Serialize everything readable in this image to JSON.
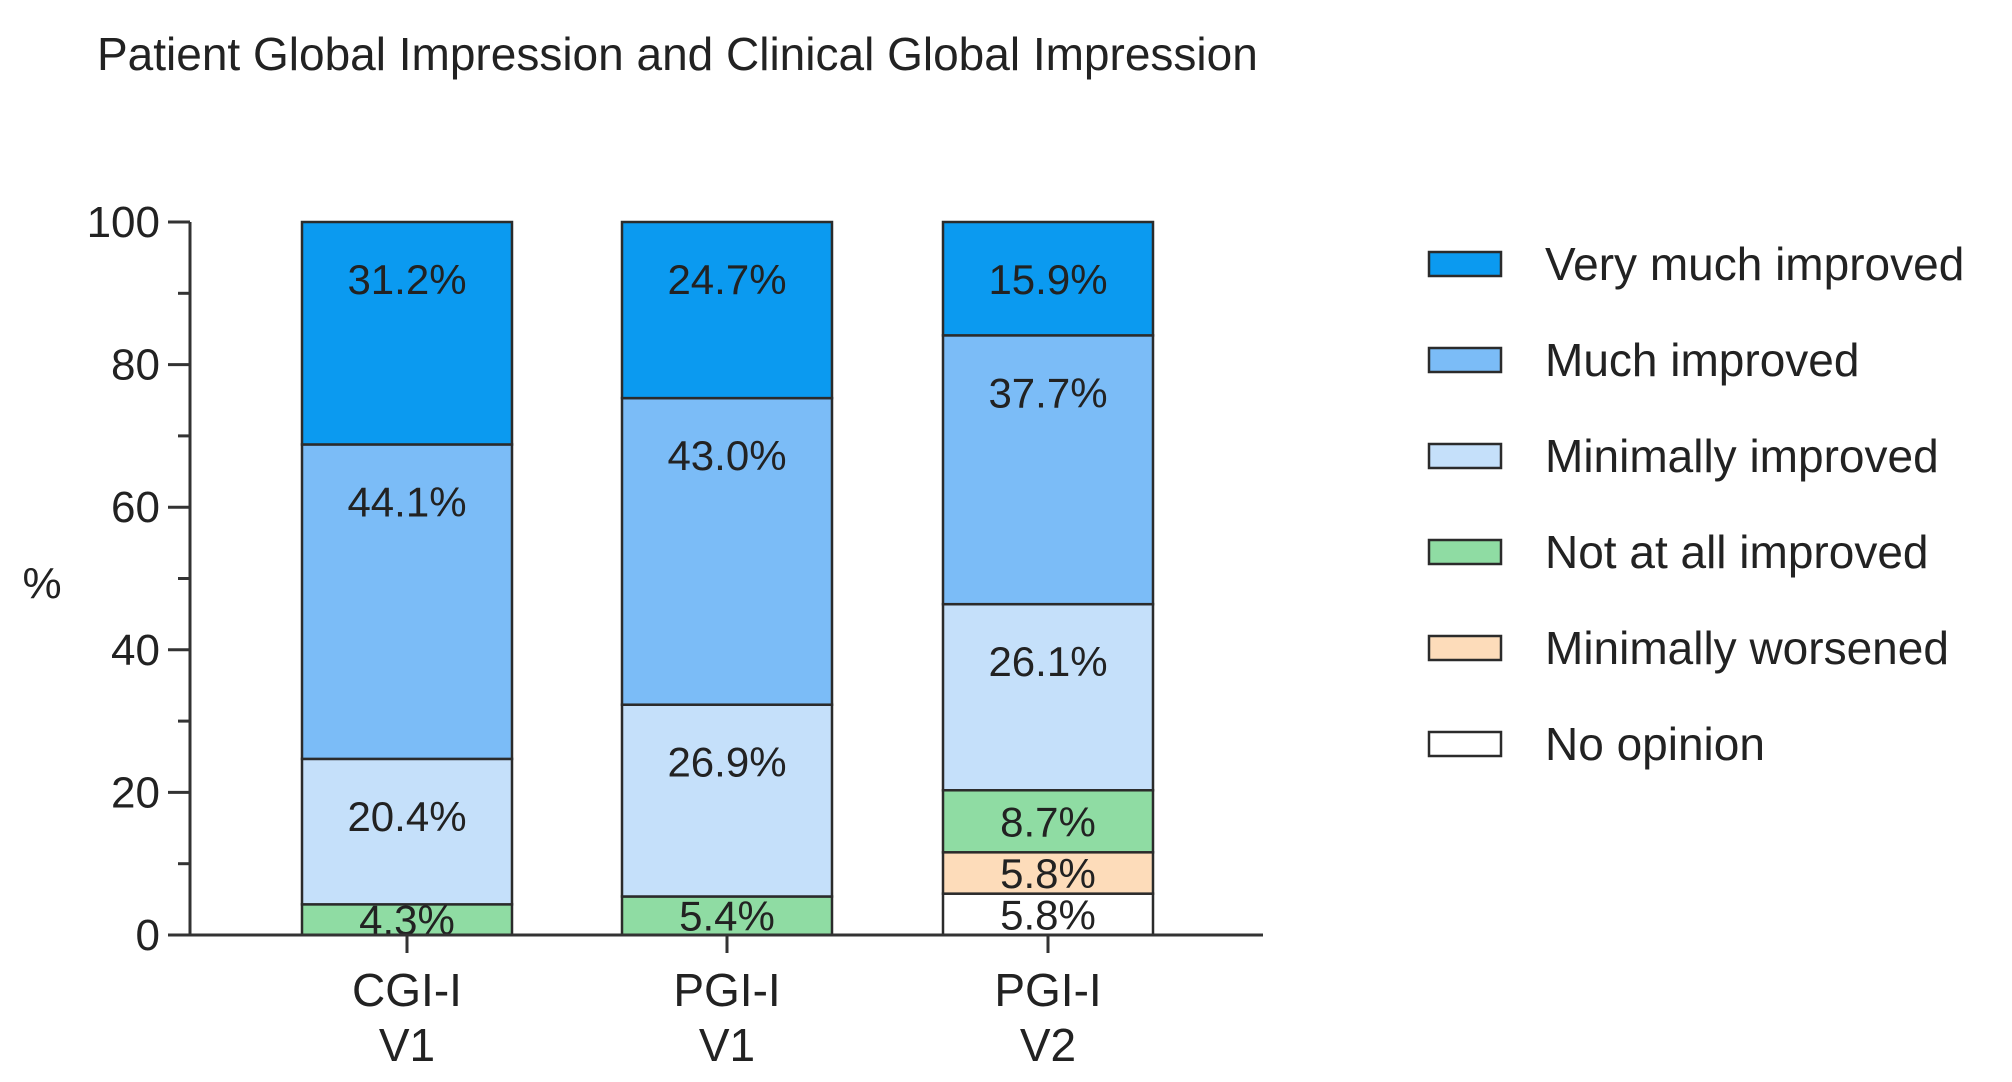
{
  "chart_data": {
    "type": "bar",
    "stacked": true,
    "title": "Patient Global Impression and Clinical Global Impression",
    "xlabel": "",
    "ylabel": "%",
    "ylim": [
      0,
      100
    ],
    "yticks": [
      0,
      20,
      40,
      60,
      80,
      100
    ],
    "grid": false,
    "legend_position": "right",
    "categories": [
      [
        "CGI-I",
        "V1"
      ],
      [
        "PGI-I",
        "V1"
      ],
      [
        "PGI-I",
        "V2"
      ]
    ],
    "series": [
      {
        "name": "No opinion",
        "color": "#ffffff",
        "values": [
          0,
          0,
          5.8
        ],
        "labels": [
          "",
          "",
          "5.8%"
        ]
      },
      {
        "name": "Minimally worsened",
        "color": "#fddcba",
        "values": [
          0,
          0,
          5.8
        ],
        "labels": [
          "",
          "",
          "5.8%"
        ]
      },
      {
        "name": "Not at all improved",
        "color": "#8fdca3",
        "values": [
          4.3,
          5.4,
          8.7
        ],
        "labels": [
          "4.3%",
          "5.4%",
          "8.7%"
        ]
      },
      {
        "name": "Minimally improved",
        "color": "#c5e0fa",
        "values": [
          20.4,
          26.9,
          26.1
        ],
        "labels": [
          "20.4%",
          "26.9%",
          "26.1%"
        ]
      },
      {
        "name": "Much improved",
        "color": "#7bbcf7",
        "values": [
          44.1,
          43.0,
          37.7
        ],
        "labels": [
          "44.1%",
          "43.0%",
          "37.7%"
        ]
      },
      {
        "name": "Very much improved",
        "color": "#0b9af0",
        "values": [
          31.2,
          24.7,
          15.9
        ],
        "labels": [
          "31.2%",
          "24.7%",
          "15.9%"
        ]
      }
    ],
    "legend_order": [
      "Very much improved",
      "Much improved",
      "Minimally improved",
      "Not at all improved",
      "Minimally worsened",
      "No opinion"
    ]
  }
}
